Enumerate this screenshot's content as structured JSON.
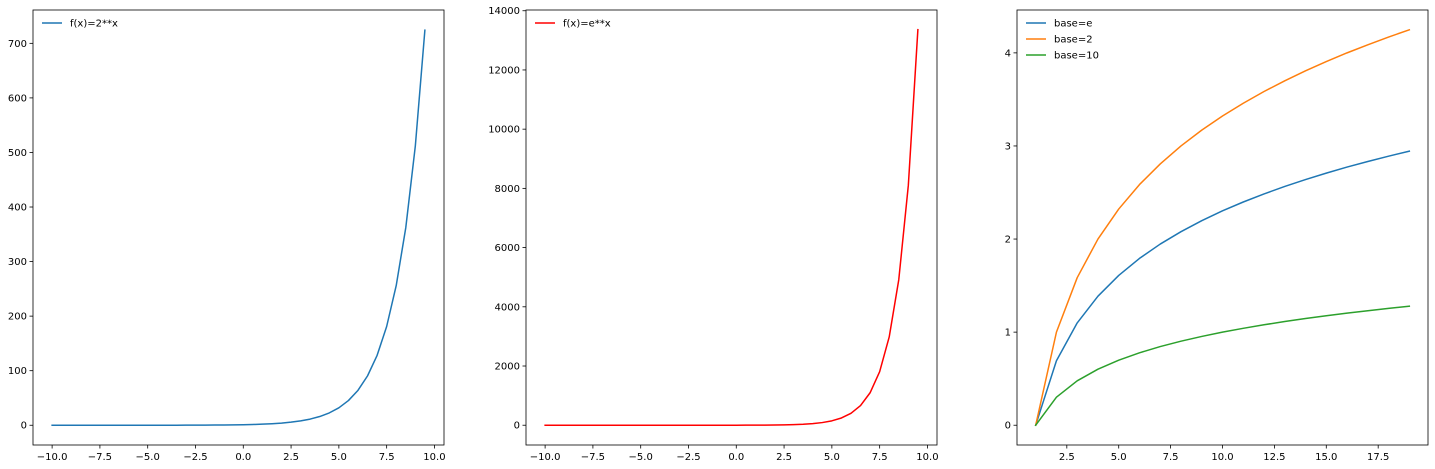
{
  "chart_data": [
    {
      "type": "line",
      "title": "",
      "xlabel": "",
      "ylabel": "",
      "xlim": [
        -11.0,
        10.5
      ],
      "ylim": [
        -36.2,
        761.1
      ],
      "xticks": [
        -10.0,
        -7.5,
        -5.0,
        -2.5,
        0.0,
        2.5,
        5.0,
        7.5,
        10.0
      ],
      "xtick_labels": [
        "−10.0",
        "−7.5",
        "−5.0",
        "−2.5",
        "0.0",
        "2.5",
        "5.0",
        "7.5",
        "10.0"
      ],
      "yticks": [
        0,
        100,
        200,
        300,
        400,
        500,
        600,
        700
      ],
      "ytick_labels": [
        "0",
        "100",
        "200",
        "300",
        "400",
        "500",
        "600",
        "700"
      ],
      "legend_position": "top-left",
      "series": [
        {
          "name": "f(x)=2**x",
          "color": "#1f77b4",
          "x": [
            -10.0,
            -9.5,
            -9.0,
            -8.5,
            -8.0,
            -7.5,
            -7.0,
            -6.5,
            -6.0,
            -5.5,
            -5.0,
            -4.5,
            -4.0,
            -3.5,
            -3.0,
            -2.5,
            -2.0,
            -1.5,
            -1.0,
            -0.5,
            0.0,
            0.5,
            1.0,
            1.5,
            2.0,
            2.5,
            3.0,
            3.5,
            4.0,
            4.5,
            5.0,
            5.5,
            6.0,
            6.5,
            7.0,
            7.5,
            8.0,
            8.5,
            9.0,
            9.5
          ],
          "y": [
            0.001,
            0.001,
            0.002,
            0.003,
            0.004,
            0.006,
            0.008,
            0.011,
            0.016,
            0.022,
            0.031,
            0.044,
            0.063,
            0.088,
            0.125,
            0.177,
            0.25,
            0.354,
            0.5,
            0.707,
            1.0,
            1.414,
            2.0,
            2.828,
            4.0,
            5.657,
            8.0,
            11.31,
            16.0,
            22.63,
            32.0,
            45.25,
            64.0,
            90.51,
            128.0,
            181.0,
            256.0,
            362.0,
            512.0,
            724.1
          ]
        }
      ]
    },
    {
      "type": "line",
      "title": "",
      "xlabel": "",
      "ylabel": "",
      "xlim": [
        -11.0,
        10.5
      ],
      "ylim": [
        -668,
        14025
      ],
      "xticks": [
        -10.0,
        -7.5,
        -5.0,
        -2.5,
        0.0,
        2.5,
        5.0,
        7.5,
        10.0
      ],
      "xtick_labels": [
        "−10.0",
        "−7.5",
        "−5.0",
        "−2.5",
        "0.0",
        "2.5",
        "5.0",
        "7.5",
        "10.0"
      ],
      "yticks": [
        0,
        2000,
        4000,
        6000,
        8000,
        10000,
        12000,
        14000
      ],
      "ytick_labels": [
        "0",
        "2000",
        "4000",
        "6000",
        "8000",
        "10000",
        "12000",
        "14000"
      ],
      "legend_position": "top-left",
      "series": [
        {
          "name": "f(x)=e**x",
          "color": "#ff0000",
          "x": [
            -10.0,
            -9.5,
            -9.0,
            -8.5,
            -8.0,
            -7.5,
            -7.0,
            -6.5,
            -6.0,
            -5.5,
            -5.0,
            -4.5,
            -4.0,
            -3.5,
            -3.0,
            -2.5,
            -2.0,
            -1.5,
            -1.0,
            -0.5,
            0.0,
            0.5,
            1.0,
            1.5,
            2.0,
            2.5,
            3.0,
            3.5,
            4.0,
            4.5,
            5.0,
            5.5,
            6.0,
            6.5,
            7.0,
            7.5,
            8.0,
            8.5,
            9.0,
            9.5
          ],
          "y": [
            0.0,
            0.0,
            0.0,
            0.0,
            0.0,
            0.001,
            0.001,
            0.002,
            0.002,
            0.004,
            0.007,
            0.011,
            0.018,
            0.03,
            0.05,
            0.082,
            0.135,
            0.223,
            0.368,
            0.607,
            1.0,
            1.649,
            2.718,
            4.482,
            7.389,
            12.18,
            20.09,
            33.12,
            54.6,
            90.02,
            148.4,
            244.7,
            403.4,
            665.1,
            1096.6,
            1808.0,
            2981.0,
            4914.8,
            8103.1,
            13359.7
          ]
        }
      ]
    },
    {
      "type": "line",
      "title": "",
      "xlabel": "",
      "ylabel": "",
      "xlim": [
        0.1,
        19.9
      ],
      "ylim": [
        -0.2124,
        4.4605
      ],
      "xticks": [
        2.5,
        5.0,
        7.5,
        10.0,
        12.5,
        15.0,
        17.5
      ],
      "xtick_labels": [
        "2.5",
        "5.0",
        "7.5",
        "10.0",
        "12.5",
        "15.0",
        "17.5"
      ],
      "yticks": [
        0,
        1,
        2,
        3,
        4
      ],
      "ytick_labels": [
        "0",
        "1",
        "2",
        "3",
        "4"
      ],
      "legend_position": "top-left",
      "series": [
        {
          "name": "base=e",
          "color": "#1f77b4",
          "x": [
            1,
            2,
            3,
            4,
            5,
            6,
            7,
            8,
            9,
            10,
            11,
            12,
            13,
            14,
            15,
            16,
            17,
            18,
            19
          ],
          "y": [
            0.0,
            0.693,
            1.099,
            1.386,
            1.609,
            1.792,
            1.946,
            2.079,
            2.197,
            2.303,
            2.398,
            2.485,
            2.565,
            2.639,
            2.708,
            2.773,
            2.833,
            2.89,
            2.944
          ]
        },
        {
          "name": "base=2",
          "color": "#ff7f0e",
          "x": [
            1,
            2,
            3,
            4,
            5,
            6,
            7,
            8,
            9,
            10,
            11,
            12,
            13,
            14,
            15,
            16,
            17,
            18,
            19
          ],
          "y": [
            0.0,
            1.0,
            1.585,
            2.0,
            2.322,
            2.585,
            2.807,
            3.0,
            3.17,
            3.322,
            3.459,
            3.585,
            3.7,
            3.807,
            3.907,
            4.0,
            4.087,
            4.17,
            4.248
          ]
        },
        {
          "name": "base=10",
          "color": "#2ca02c",
          "x": [
            1,
            2,
            3,
            4,
            5,
            6,
            7,
            8,
            9,
            10,
            11,
            12,
            13,
            14,
            15,
            16,
            17,
            18,
            19
          ],
          "y": [
            0.0,
            0.301,
            0.477,
            0.602,
            0.699,
            0.778,
            0.845,
            0.903,
            0.954,
            1.0,
            1.041,
            1.079,
            1.114,
            1.146,
            1.176,
            1.204,
            1.23,
            1.255,
            1.279
          ]
        }
      ]
    }
  ]
}
